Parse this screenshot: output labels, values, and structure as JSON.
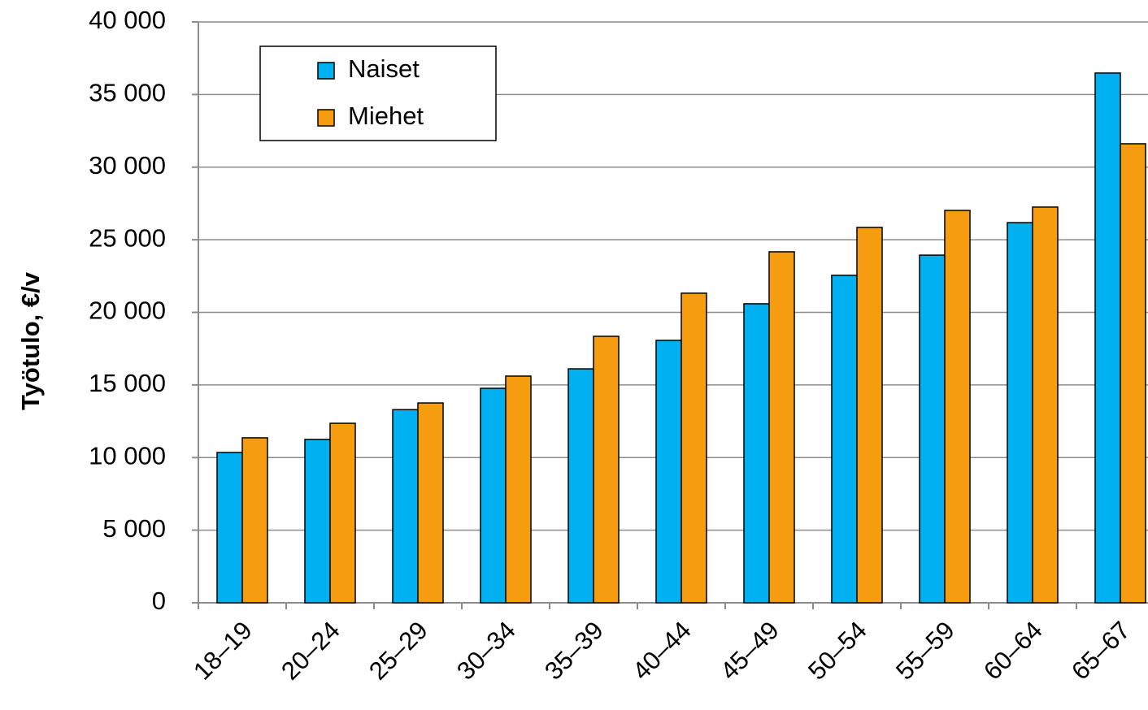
{
  "chart_data": {
    "type": "bar",
    "ylabel": "Työtulo, €/v",
    "categories": [
      "18–19",
      "20–24",
      "25–29",
      "30–34",
      "35–39",
      "40–44",
      "45–49",
      "50–54",
      "55–59",
      "60–64",
      "65–67"
    ],
    "series": [
      {
        "name": "Naiset",
        "color": "#00b0f0",
        "values": [
          10350,
          11250,
          13300,
          14770,
          16110,
          18070,
          20590,
          22550,
          23940,
          26180,
          36480
        ]
      },
      {
        "name": "Miehet",
        "color": "#f59d0e",
        "values": [
          11360,
          12360,
          13760,
          15610,
          18350,
          21320,
          24170,
          25850,
          27020,
          27250,
          31610
        ]
      }
    ],
    "ylim": [
      0,
      40000
    ],
    "yticks": [
      0,
      {
        "value": 5000,
        "label": "5 000"
      },
      {
        "value": 10000,
        "label": "10 000"
      },
      {
        "value": 15000,
        "label": "15 000"
      },
      {
        "value": 20000,
        "label": "20 000"
      },
      {
        "value": 25000,
        "label": "25 000"
      },
      {
        "value": 30000,
        "label": "30 000"
      },
      {
        "value": 35000,
        "label": "35 000"
      },
      {
        "value": 40000,
        "label": "40 000"
      }
    ],
    "grid": true,
    "legend": "upper left"
  }
}
